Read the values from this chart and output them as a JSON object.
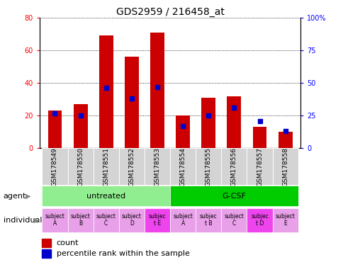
{
  "title": "GDS2959 / 216458_at",
  "samples": [
    "GSM178549",
    "GSM178550",
    "GSM178551",
    "GSM178552",
    "GSM178553",
    "GSM178554",
    "GSM178555",
    "GSM178556",
    "GSM178557",
    "GSM178558"
  ],
  "counts": [
    23,
    27,
    69,
    56,
    71,
    20,
    31,
    32,
    13,
    10
  ],
  "percentile_ranks": [
    27,
    25,
    46,
    38,
    47,
    17,
    25,
    31,
    21,
    13
  ],
  "ylim_left": [
    0,
    80
  ],
  "ylim_right": [
    0,
    100
  ],
  "yticks_left": [
    0,
    20,
    40,
    60,
    80
  ],
  "yticks_right": [
    0,
    25,
    50,
    75,
    100
  ],
  "ytick_labels_right": [
    "0",
    "25",
    "50",
    "75",
    "100%"
  ],
  "agent_groups": [
    {
      "label": "untreated",
      "start": 0,
      "end": 5,
      "color": "#90EE90"
    },
    {
      "label": "G-CSF",
      "start": 5,
      "end": 10,
      "color": "#00CC00"
    }
  ],
  "individual_labels": [
    "subject\nA",
    "subject\nB",
    "subject\nC",
    "subject\nD",
    "subjec\nt E",
    "subject\nA",
    "subjec\nt B",
    "subject\nC",
    "subjec\nt D",
    "subject\nE"
  ],
  "individual_highlight": [
    4,
    8
  ],
  "individual_color_normal": "#E8A0E8",
  "individual_color_highlight": "#EE44EE",
  "bar_color": "#CC0000",
  "percentile_color": "#0000CC",
  "agent_label": "agent",
  "individual_label": "individual",
  "bar_width": 0.55,
  "title_fontsize": 10,
  "tick_fontsize": 7,
  "label_fontsize": 8,
  "legend_fontsize": 8
}
